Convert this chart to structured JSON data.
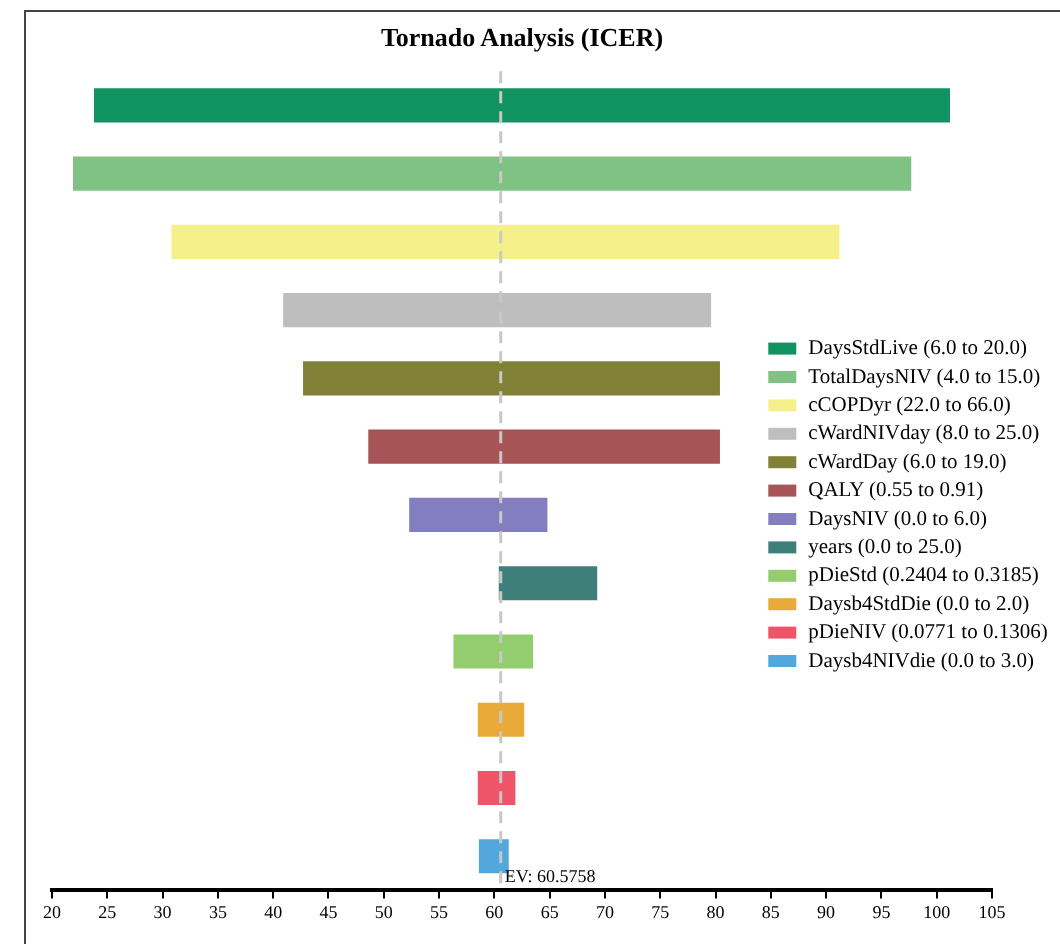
{
  "chart_data": {
    "type": "bar",
    "orientation": "horizontal",
    "title": "Tornado Analysis (ICER)",
    "categories": [
      null,
      null,
      null,
      null,
      null,
      null,
      null,
      null,
      null,
      null,
      null,
      null
    ],
    "series": [
      {
        "name": "DaysStdLive (6.0 to 20.0)",
        "color": "#109360",
        "values": [
          77.4,
          null,
          null,
          null,
          null,
          null,
          null,
          null,
          null,
          null,
          null,
          null
        ],
        "base": [
          23.8,
          null,
          null,
          null,
          null,
          null,
          null,
          null,
          null,
          null,
          null,
          null
        ]
      },
      {
        "name": "TotalDaysNIV (4.0 to 15.0)",
        "color": "#80c283",
        "values": [
          null,
          75.8,
          null,
          null,
          null,
          null,
          null,
          null,
          null,
          null,
          null,
          null
        ],
        "base": [
          null,
          21.9,
          null,
          null,
          null,
          null,
          null,
          null,
          null,
          null,
          null,
          null
        ]
      },
      {
        "name": "cCOPDyr (22.0 to 66.0)",
        "color": "#f5f08a",
        "values": [
          null,
          null,
          60.4,
          null,
          null,
          null,
          null,
          null,
          null,
          null,
          null,
          null
        ],
        "base": [
          null,
          null,
          30.8,
          null,
          null,
          null,
          null,
          null,
          null,
          null,
          null,
          null
        ]
      },
      {
        "name": "cWardNIVday (8.0 to 25.0)",
        "color": "#bebebe",
        "values": [
          null,
          null,
          null,
          38.7,
          null,
          null,
          null,
          null,
          null,
          null,
          null,
          null
        ],
        "base": [
          null,
          null,
          null,
          40.9,
          null,
          null,
          null,
          null,
          null,
          null,
          null,
          null
        ]
      },
      {
        "name": "cWardDay (6.0 to 19.0)",
        "color": "#808036",
        "values": [
          null,
          null,
          null,
          null,
          37.7,
          null,
          null,
          null,
          null,
          null,
          null,
          null
        ],
        "base": [
          null,
          null,
          null,
          null,
          42.7,
          null,
          null,
          null,
          null,
          null,
          null,
          null
        ]
      },
      {
        "name": "QALY (0.55 to 0.91)",
        "color": "#a65455",
        "values": [
          null,
          null,
          null,
          null,
          null,
          31.8,
          null,
          null,
          null,
          null,
          null,
          null
        ],
        "base": [
          null,
          null,
          null,
          null,
          null,
          48.6,
          null,
          null,
          null,
          null,
          null,
          null
        ]
      },
      {
        "name": "DaysNIV (0.0 to 6.0)",
        "color": "#837ec0",
        "values": [
          null,
          null,
          null,
          null,
          null,
          null,
          12.5,
          null,
          null,
          null,
          null,
          null
        ],
        "base": [
          null,
          null,
          null,
          null,
          null,
          null,
          52.3,
          null,
          null,
          null,
          null,
          null
        ]
      },
      {
        "name": "years (0.0 to 25.0)",
        "color": "#3f7f7a",
        "values": [
          null,
          null,
          null,
          null,
          null,
          null,
          null,
          8.9,
          null,
          null,
          null,
          null
        ],
        "base": [
          null,
          null,
          null,
          null,
          null,
          null,
          null,
          60.4,
          null,
          null,
          null,
          null
        ]
      },
      {
        "name": "pDieStd (0.2404 to 0.3185)",
        "color": "#93cd6d",
        "values": [
          null,
          null,
          null,
          null,
          null,
          null,
          null,
          null,
          7.2,
          null,
          null,
          null
        ],
        "base": [
          null,
          null,
          null,
          null,
          null,
          null,
          null,
          null,
          56.3,
          null,
          null,
          null
        ]
      },
      {
        "name": "Daysb4StdDie (0.0 to 2.0)",
        "color": "#e8ab3a",
        "values": [
          null,
          null,
          null,
          null,
          null,
          null,
          null,
          null,
          null,
          4.2,
          null,
          null
        ],
        "base": [
          null,
          null,
          null,
          null,
          null,
          null,
          null,
          null,
          null,
          58.5,
          null,
          null
        ]
      },
      {
        "name": "pDieNIV (0.0771 to 0.1306)",
        "color": "#ef5568",
        "values": [
          null,
          null,
          null,
          null,
          null,
          null,
          null,
          null,
          null,
          null,
          3.4,
          null
        ],
        "base": [
          null,
          null,
          null,
          null,
          null,
          null,
          null,
          null,
          null,
          null,
          58.5,
          null
        ]
      },
      {
        "name": "Daysb4NIVdie (0.0 to 3.0)",
        "color": "#52a7dc",
        "values": [
          null,
          null,
          null,
          null,
          null,
          null,
          null,
          null,
          null,
          null,
          null,
          2.7
        ],
        "base": [
          null,
          null,
          null,
          null,
          null,
          null,
          null,
          null,
          null,
          null,
          null,
          58.6
        ]
      }
    ],
    "xlim": [
      20,
      105
    ],
    "xticks": [
      20,
      25,
      30,
      35,
      40,
      45,
      50,
      55,
      60,
      65,
      70,
      75,
      80,
      85,
      90,
      95,
      100,
      105
    ],
    "ref_lines": [
      {
        "axis": "x",
        "value": 60.5758,
        "label": "EV: 60.5758",
        "color": "#c8c8c8",
        "line_style": "dashed"
      }
    ],
    "grid": false,
    "legend": "right"
  }
}
